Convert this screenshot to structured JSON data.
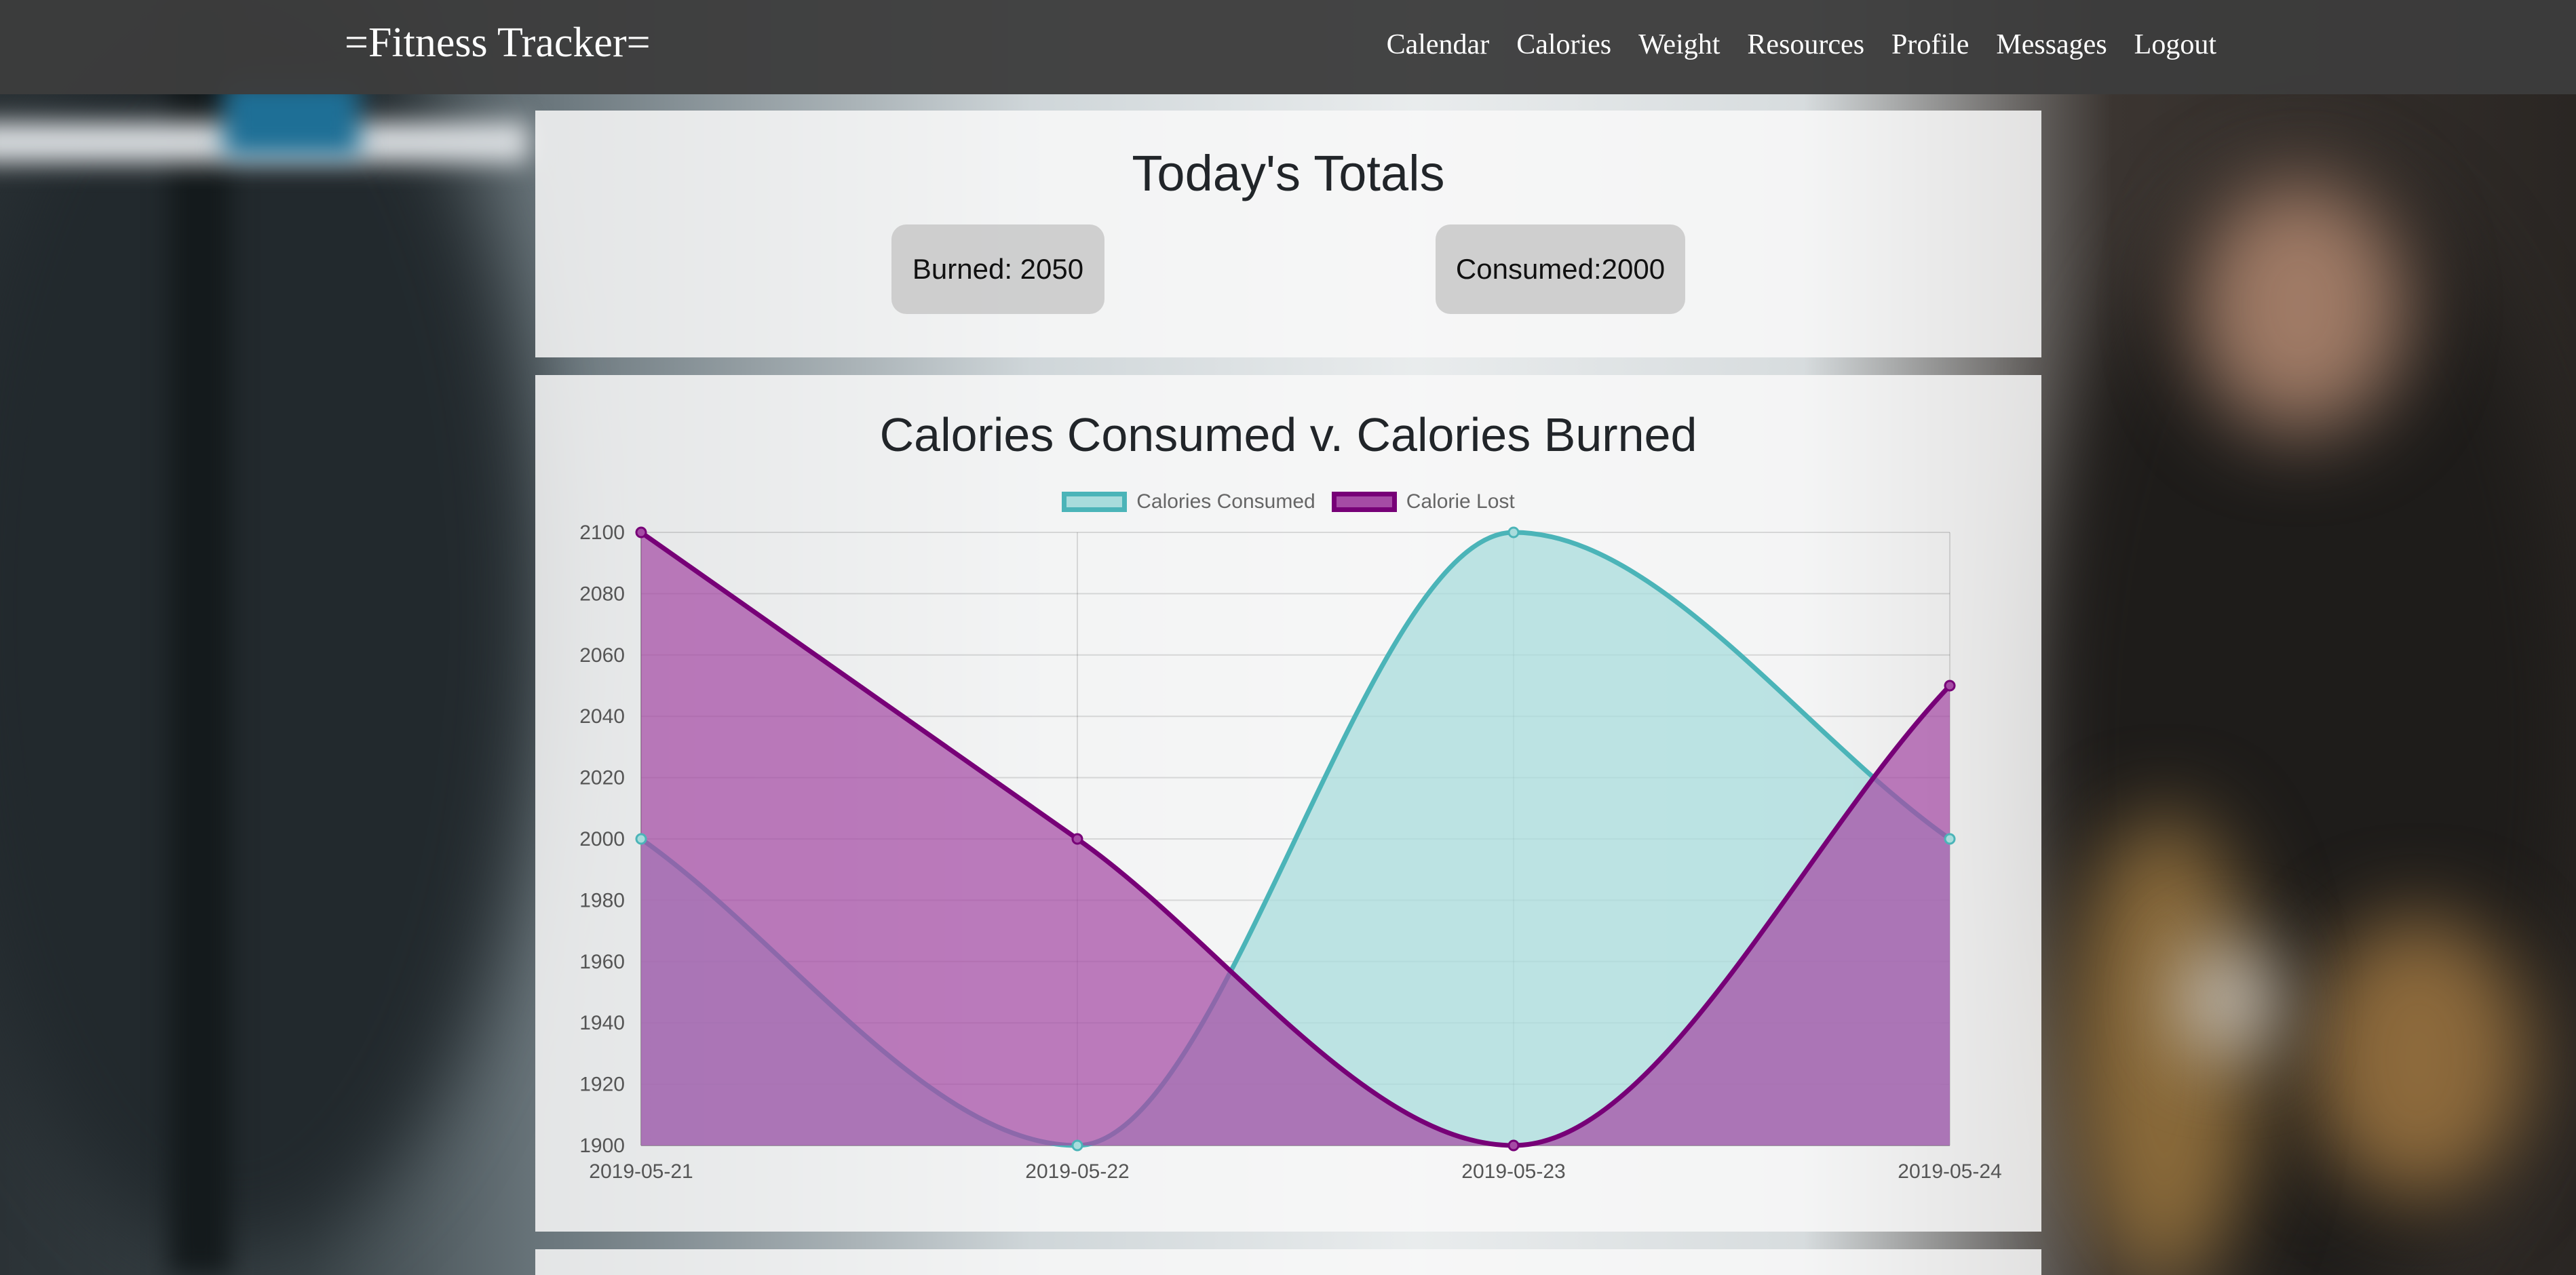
{
  "navbar": {
    "brand": "=Fitness Tracker=",
    "links": [
      "Calendar",
      "Calories",
      "Weight",
      "Resources",
      "Profile",
      "Messages",
      "Logout"
    ]
  },
  "totals": {
    "title": "Today's Totals",
    "burned": "Burned: 2050",
    "consumed": "Consumed:2000"
  },
  "chart_title": "Calories Consumed v. Calories Burned",
  "colors": {
    "consumed_line": "#4bb4b8",
    "consumed_fill": "#a8dcdc",
    "lost_line": "#770077",
    "lost_fill": "#a54ba5"
  },
  "chart_data": {
    "type": "area",
    "title": "Calories Consumed v. Calories Burned",
    "x": [
      "2019-05-21",
      "2019-05-22",
      "2019-05-23",
      "2019-05-24"
    ],
    "series": [
      {
        "name": "Calories Consumed",
        "values": [
          2000,
          1900,
          2100,
          2000
        ]
      },
      {
        "name": "Calorie Lost",
        "values": [
          2100,
          2000,
          1900,
          2050
        ]
      }
    ],
    "ylim": [
      1900,
      2100
    ],
    "yticks": [
      1900,
      1920,
      1940,
      1960,
      1980,
      2000,
      2020,
      2040,
      2060,
      2080,
      2100
    ],
    "grid": true,
    "legend": "top-center"
  }
}
